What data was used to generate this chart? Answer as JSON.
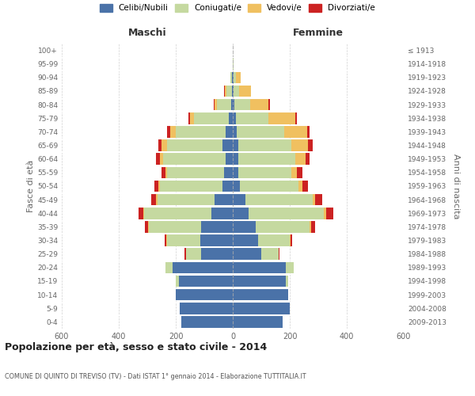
{
  "age_groups": [
    "0-4",
    "5-9",
    "10-14",
    "15-19",
    "20-24",
    "25-29",
    "30-34",
    "35-39",
    "40-44",
    "45-49",
    "50-54",
    "55-59",
    "60-64",
    "65-69",
    "70-74",
    "75-79",
    "80-84",
    "85-89",
    "90-94",
    "95-99",
    "100+"
  ],
  "birth_years": [
    "2009-2013",
    "2004-2008",
    "1999-2003",
    "1994-1998",
    "1989-1993",
    "1984-1988",
    "1979-1983",
    "1974-1978",
    "1969-1973",
    "1964-1968",
    "1959-1963",
    "1954-1958",
    "1949-1953",
    "1944-1948",
    "1939-1943",
    "1934-1938",
    "1929-1933",
    "1924-1928",
    "1919-1923",
    "1914-1918",
    "≤ 1913"
  ],
  "male": {
    "celibi": [
      180,
      185,
      200,
      190,
      210,
      110,
      115,
      110,
      75,
      65,
      35,
      30,
      25,
      35,
      25,
      15,
      5,
      3,
      2,
      0,
      0
    ],
    "coniugati": [
      0,
      0,
      0,
      10,
      25,
      55,
      115,
      185,
      235,
      200,
      220,
      200,
      220,
      195,
      175,
      120,
      50,
      20,
      5,
      1,
      0
    ],
    "vedovi": [
      0,
      0,
      0,
      0,
      0,
      0,
      2,
      2,
      5,
      5,
      5,
      5,
      10,
      20,
      20,
      15,
      10,
      5,
      2,
      0,
      0
    ],
    "divorziati": [
      0,
      0,
      0,
      0,
      0,
      5,
      8,
      10,
      15,
      15,
      15,
      15,
      15,
      10,
      10,
      5,
      2,
      2,
      0,
      0,
      0
    ]
  },
  "female": {
    "nubili": [
      175,
      200,
      195,
      185,
      185,
      100,
      90,
      80,
      55,
      45,
      25,
      20,
      20,
      20,
      15,
      10,
      5,
      3,
      2,
      0,
      0
    ],
    "coniugate": [
      0,
      0,
      0,
      10,
      30,
      60,
      110,
      190,
      265,
      235,
      205,
      185,
      200,
      185,
      165,
      115,
      55,
      20,
      8,
      2,
      0
    ],
    "vedove": [
      0,
      0,
      0,
      0,
      0,
      2,
      2,
      5,
      8,
      10,
      15,
      20,
      35,
      60,
      80,
      95,
      65,
      40,
      18,
      2,
      0
    ],
    "divorziate": [
      0,
      0,
      0,
      0,
      0,
      2,
      5,
      15,
      25,
      25,
      20,
      20,
      15,
      15,
      10,
      5,
      5,
      2,
      0,
      0,
      0
    ]
  },
  "colors": {
    "celibi": "#4a72a8",
    "coniugati": "#c5d9a0",
    "vedovi": "#f0c060",
    "divorziati": "#cc2222"
  },
  "title": "Popolazione per età, sesso e stato civile - 2014",
  "subtitle": "COMUNE DI QUINTO DI TREVISO (TV) - Dati ISTAT 1° gennaio 2014 - Elaborazione TUTTITALIA.IT",
  "xlabel_left": "Maschi",
  "xlabel_right": "Femmine",
  "ylabel_left": "Fasce di età",
  "ylabel_right": "Anni di nascita",
  "xlim": 600,
  "legend_labels": [
    "Celibi/Nubili",
    "Coniugati/e",
    "Vedovi/e",
    "Divorziati/e"
  ],
  "background_color": "#ffffff",
  "bar_height": 0.85
}
